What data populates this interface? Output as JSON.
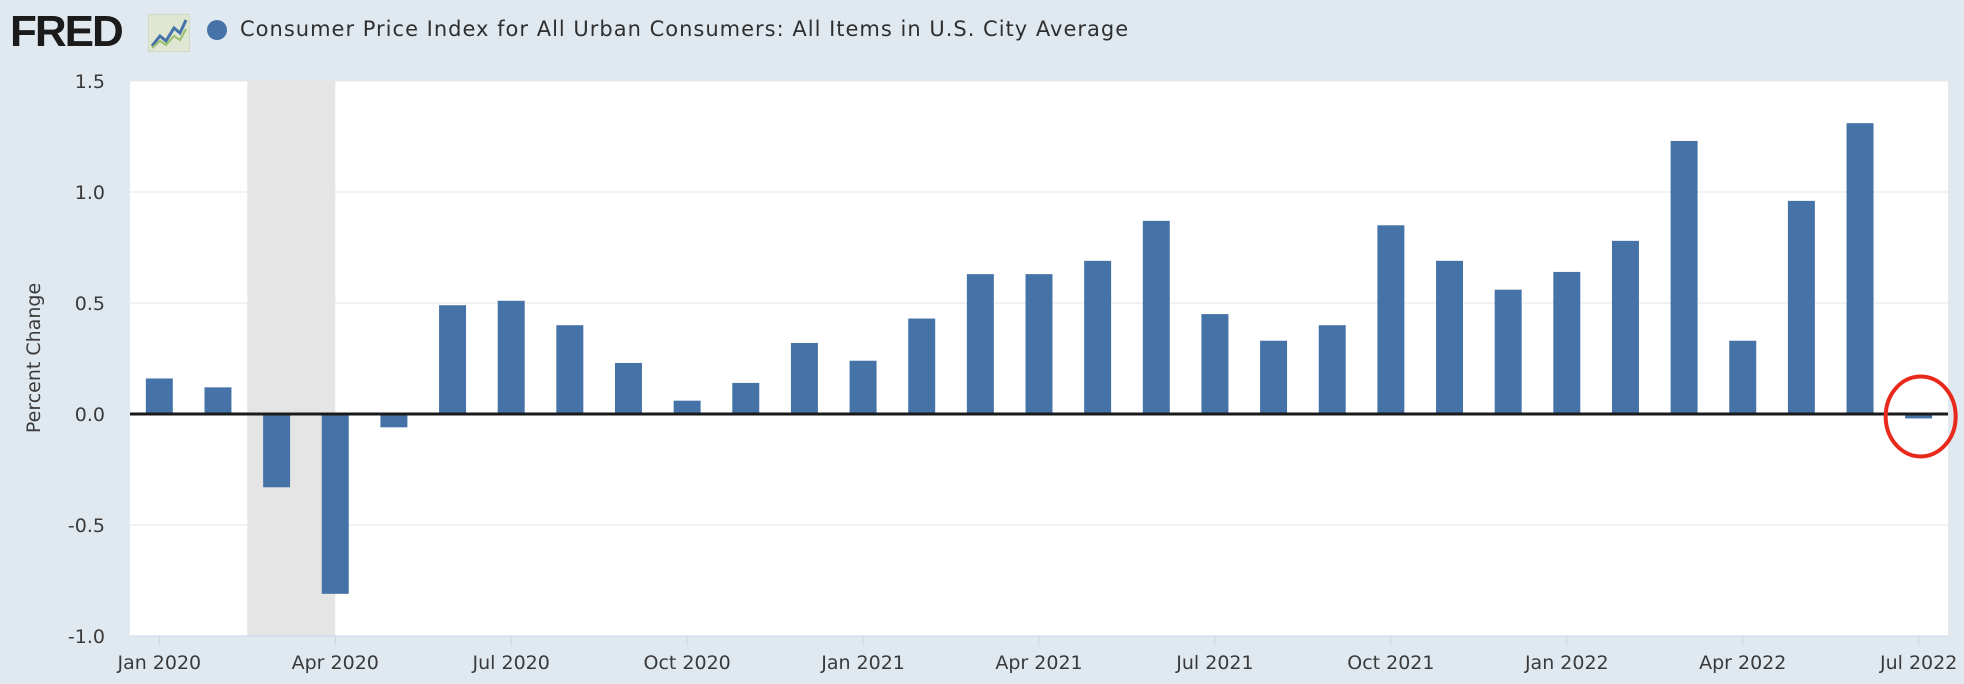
{
  "logo": {
    "text": "FRED",
    "icon": "fred-chart-line-icon"
  },
  "chart_data": {
    "type": "bar",
    "title": "Consumer Price Index for All Urban Consumers: All Items in U.S. City Average",
    "xlabel": "",
    "ylabel": "Percent Change",
    "ylim": [
      -1.0,
      1.5
    ],
    "yticks": [
      1.5,
      1.0,
      0.5,
      0.0,
      -0.5,
      -1.0
    ],
    "ytick_labels": [
      "1.5",
      "1.0",
      "0.5",
      "0.0",
      "-0.5",
      "-1.0"
    ],
    "xtick_labels": [
      "Jan 2020",
      "Apr 2020",
      "Jul 2020",
      "Oct 2020",
      "Jan 2021",
      "Apr 2021",
      "Jul 2021",
      "Oct 2021",
      "Jan 2022",
      "Apr 2022",
      "Jul 2022"
    ],
    "xtick_month_index": [
      0,
      3,
      6,
      9,
      12,
      15,
      18,
      21,
      24,
      27,
      30
    ],
    "categories": [
      "Jan 2020",
      "Feb 2020",
      "Mar 2020",
      "Apr 2020",
      "May 2020",
      "Jun 2020",
      "Jul 2020",
      "Aug 2020",
      "Sep 2020",
      "Oct 2020",
      "Nov 2020",
      "Dec 2020",
      "Jan 2021",
      "Feb 2021",
      "Mar 2021",
      "Apr 2021",
      "May 2021",
      "Jun 2021",
      "Jul 2021",
      "Aug 2021",
      "Sep 2021",
      "Oct 2021",
      "Nov 2021",
      "Dec 2021",
      "Jan 2022",
      "Feb 2022",
      "Mar 2022",
      "Apr 2022",
      "May 2022",
      "Jun 2022",
      "Jul 2022"
    ],
    "series": [
      {
        "name": "Consumer Price Index for All Urban Consumers: All Items in U.S. City Average",
        "color": "#4572a7",
        "values": [
          0.16,
          0.12,
          -0.33,
          -0.81,
          -0.06,
          0.49,
          0.51,
          0.4,
          0.23,
          0.06,
          0.14,
          0.32,
          0.24,
          0.43,
          0.63,
          0.63,
          0.69,
          0.87,
          0.45,
          0.33,
          0.4,
          0.85,
          0.69,
          0.56,
          0.64,
          0.78,
          1.23,
          0.33,
          0.96,
          1.31,
          -0.02
        ]
      }
    ],
    "recession_shading": {
      "start_month_index": 1.5,
      "end_month_index": 3,
      "color": "#e5e5e5"
    },
    "zero_line_color": "#1a1a1a",
    "annotation": {
      "type": "circle",
      "month_index": 30,
      "value": -0.02,
      "color": "#e8291c"
    },
    "grid": true
  }
}
